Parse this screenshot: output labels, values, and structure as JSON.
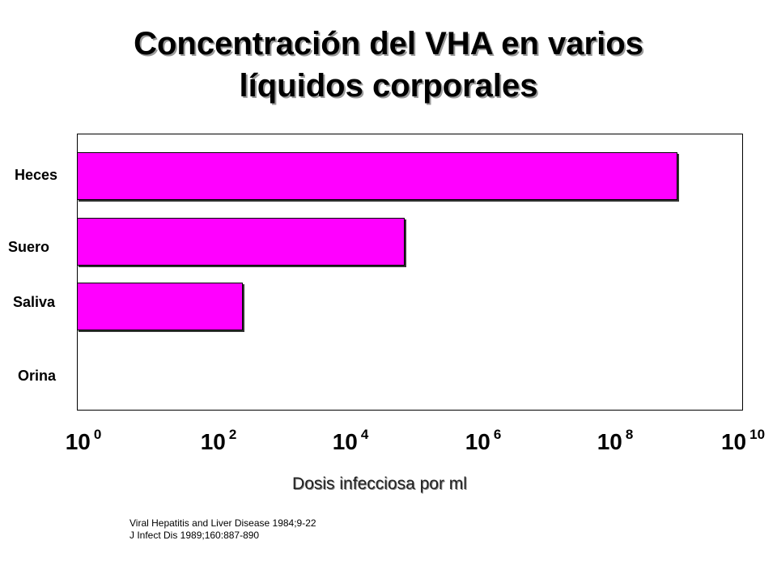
{
  "chart_data": {
    "type": "bar",
    "orientation": "horizontal",
    "title_lines": [
      "Concentración del VHA en varios",
      "líquidos corporales"
    ],
    "xlabel": "Dosis infecciosa por ml",
    "x_scale": "log10",
    "xlim": [
      1,
      10000000000
    ],
    "x_ticks": [
      {
        "base": "10",
        "exp": "0"
      },
      {
        "base": "10",
        "exp": "2"
      },
      {
        "base": "10",
        "exp": "4"
      },
      {
        "base": "10",
        "exp": "6"
      },
      {
        "base": "10",
        "exp": "8"
      },
      {
        "base": "10",
        "exp": "10"
      }
    ],
    "categories": [
      "Heces",
      "Suero",
      "Saliva",
      "Orina"
    ],
    "values": [
      1000000000,
      80000,
      300,
      null
    ],
    "bar_color": "#ff00ff",
    "grid": false
  },
  "references": [
    "Viral Hepatitis and Liver Disease 1984;9-22",
    "J Infect Dis 1989;160:887-890"
  ]
}
